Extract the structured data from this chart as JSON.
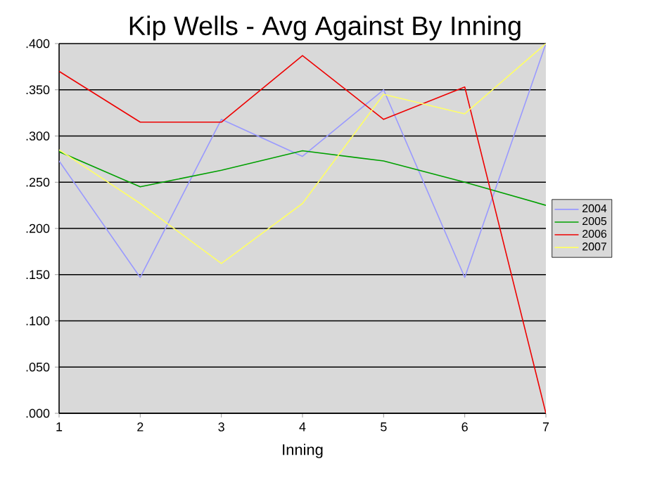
{
  "chart_data": {
    "type": "line",
    "title": "Kip Wells - Avg Against By Inning",
    "xlabel": "Inning",
    "x": [
      1,
      2,
      3,
      4,
      5,
      6,
      7
    ],
    "xlim": [
      1,
      7
    ],
    "xticks": [
      1,
      2,
      3,
      4,
      5,
      6,
      7
    ],
    "ylim": [
      0,
      0.4
    ],
    "yticks": [
      {
        "value": 0,
        "label": ".000"
      },
      {
        "value": 0.05,
        "label": ".050"
      },
      {
        "value": 0.1,
        "label": ".100"
      },
      {
        "value": 0.15,
        "label": ".150"
      },
      {
        "value": 0.2,
        "label": ".200"
      },
      {
        "value": 0.25,
        "label": ".250"
      },
      {
        "value": 0.3,
        "label": ".300"
      },
      {
        "value": 0.35,
        "label": ".350"
      },
      {
        "value": 0.4,
        "label": ".400"
      }
    ],
    "grid": "y",
    "legend": "right",
    "marker": "none",
    "line_style": "solid",
    "series": [
      {
        "name": "2004",
        "color": "#9999ff",
        "values": [
          0.273,
          0.147,
          0.318,
          0.278,
          0.35,
          0.147,
          0.4
        ]
      },
      {
        "name": "2005",
        "color": "#00a000",
        "values": [
          0.283,
          0.245,
          0.263,
          0.284,
          0.273,
          0.25,
          0.225
        ]
      },
      {
        "name": "2006",
        "color": "#ee0000",
        "values": [
          0.37,
          0.315,
          0.315,
          0.387,
          0.318,
          0.353,
          0.0
        ]
      },
      {
        "name": "2007",
        "color": "#ffff66",
        "values": [
          0.285,
          0.227,
          0.162,
          0.227,
          0.345,
          0.324,
          0.4
        ]
      }
    ]
  }
}
